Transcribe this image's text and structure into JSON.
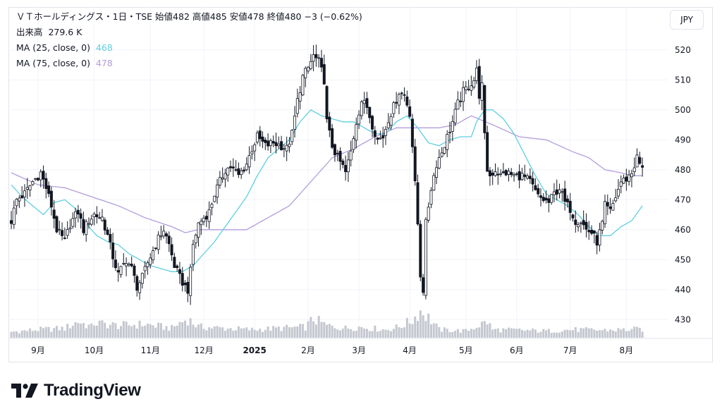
{
  "header": {
    "title": "ＶＴホールディングス・1日・TSE",
    "open_label": "始値",
    "open": "482",
    "high_label": "高値",
    "high": "485",
    "low_label": "安値",
    "low": "478",
    "close_label": "終値",
    "close": "480",
    "change": "−3 (−0.62%)",
    "volume_label": "出来高",
    "volume": "279.6 K",
    "ma25_label": "MA (25, close, 0)",
    "ma25_value": "468",
    "ma75_label": "MA (75, close, 0)",
    "ma75_value": "478",
    "currency": "JPY"
  },
  "brand": {
    "name": "TradingView"
  },
  "colors": {
    "up": "#131722",
    "down": "#131722",
    "ma25": "#5fcee0",
    "ma75": "#b39ddb",
    "grid": "#f0f3fa"
  },
  "chart_data": {
    "type": "candlestick",
    "y_ticks": [
      "520",
      "510",
      "500",
      "490",
      "480",
      "470",
      "460",
      "450",
      "440",
      "430"
    ],
    "ylim": [
      427,
      523
    ],
    "x_ticks": [
      {
        "label": "9月",
        "index": 10
      },
      {
        "label": "10月",
        "index": 31
      },
      {
        "label": "11月",
        "index": 52
      },
      {
        "label": "12月",
        "index": 72
      },
      {
        "label": "2025",
        "index": 91
      },
      {
        "label": "2月",
        "index": 111
      },
      {
        "label": "3月",
        "index": 130
      },
      {
        "label": "4月",
        "index": 149
      },
      {
        "label": "5月",
        "index": 170
      },
      {
        "label": "6月",
        "index": 189
      },
      {
        "label": "7月",
        "index": 209
      },
      {
        "label": "8月",
        "index": 230
      }
    ],
    "close_anchors": [
      [
        0,
        463
      ],
      [
        2,
        470
      ],
      [
        5,
        472
      ],
      [
        8,
        476
      ],
      [
        11,
        479
      ],
      [
        13,
        474
      ],
      [
        15,
        468
      ],
      [
        17,
        460
      ],
      [
        20,
        456
      ],
      [
        22,
        462
      ],
      [
        25,
        466
      ],
      [
        27,
        460
      ],
      [
        29,
        463
      ],
      [
        31,
        465
      ],
      [
        34,
        464
      ],
      [
        36,
        458
      ],
      [
        38,
        451
      ],
      [
        40,
        445
      ],
      [
        43,
        450
      ],
      [
        45,
        447
      ],
      [
        47,
        441
      ],
      [
        49,
        444
      ],
      [
        51,
        449
      ],
      [
        53,
        453
      ],
      [
        55,
        457
      ],
      [
        57,
        460
      ],
      [
        59,
        455
      ],
      [
        61,
        448
      ],
      [
        63,
        444
      ],
      [
        65,
        441
      ],
      [
        66,
        440
      ],
      [
        67,
        446
      ],
      [
        68,
        455
      ],
      [
        70,
        462
      ],
      [
        72,
        464
      ],
      [
        74,
        466
      ],
      [
        76,
        472
      ],
      [
        78,
        476
      ],
      [
        80,
        480
      ],
      [
        82,
        481
      ],
      [
        85,
        478
      ],
      [
        88,
        482
      ],
      [
        90,
        487
      ],
      [
        92,
        491
      ],
      [
        95,
        488
      ],
      [
        98,
        489
      ],
      [
        101,
        488
      ],
      [
        103,
        487
      ],
      [
        105,
        492
      ],
      [
        107,
        503
      ],
      [
        109,
        511
      ],
      [
        111,
        514
      ],
      [
        113,
        518
      ],
      [
        115,
        516
      ],
      [
        117,
        510
      ],
      [
        118,
        496
      ],
      [
        120,
        488
      ],
      [
        122,
        484
      ],
      [
        124,
        481
      ],
      [
        125,
        479
      ],
      [
        127,
        486
      ],
      [
        129,
        496
      ],
      [
        131,
        503
      ],
      [
        133,
        501
      ],
      [
        135,
        495
      ],
      [
        137,
        490
      ],
      [
        139,
        491
      ],
      [
        141,
        497
      ],
      [
        143,
        501
      ],
      [
        145,
        506
      ],
      [
        147,
        505
      ],
      [
        149,
        499
      ],
      [
        150,
        488
      ],
      [
        151,
        475
      ],
      [
        152,
        462
      ],
      [
        153,
        445
      ],
      [
        154,
        440
      ],
      [
        155,
        462
      ],
      [
        157,
        474
      ],
      [
        159,
        482
      ],
      [
        161,
        486
      ],
      [
        163,
        491
      ],
      [
        165,
        496
      ],
      [
        167,
        502
      ],
      [
        169,
        506
      ],
      [
        171,
        508
      ],
      [
        173,
        510
      ],
      [
        174,
        513
      ],
      [
        175,
        505
      ],
      [
        176,
        508
      ],
      [
        177,
        491
      ],
      [
        178,
        480
      ],
      [
        179,
        478
      ],
      [
        181,
        480
      ],
      [
        183,
        478
      ],
      [
        185,
        479
      ],
      [
        188,
        478
      ],
      [
        191,
        478
      ],
      [
        194,
        476
      ],
      [
        197,
        471
      ],
      [
        199,
        470
      ],
      [
        201,
        469
      ],
      [
        203,
        472
      ],
      [
        205,
        474
      ],
      [
        207,
        469
      ],
      [
        209,
        467
      ],
      [
        211,
        463
      ],
      [
        213,
        463
      ],
      [
        215,
        460
      ],
      [
        217,
        459
      ],
      [
        219,
        456
      ],
      [
        221,
        462
      ],
      [
        222,
        468
      ],
      [
        224,
        466
      ],
      [
        226,
        471
      ],
      [
        228,
        476
      ],
      [
        230,
        477
      ],
      [
        232,
        479
      ],
      [
        234,
        484
      ],
      [
        235,
        482
      ],
      [
        236,
        480
      ]
    ],
    "volume_range": [
      0,
      100
    ],
    "volume_anchors": [
      [
        0,
        22
      ],
      [
        10,
        30
      ],
      [
        20,
        35
      ],
      [
        25,
        60
      ],
      [
        30,
        40
      ],
      [
        31,
        55
      ],
      [
        40,
        45
      ],
      [
        50,
        50
      ],
      [
        60,
        35
      ],
      [
        63,
        55
      ],
      [
        66,
        70
      ],
      [
        70,
        40
      ],
      [
        80,
        35
      ],
      [
        90,
        30
      ],
      [
        100,
        35
      ],
      [
        110,
        40
      ],
      [
        113,
        70
      ],
      [
        118,
        45
      ],
      [
        125,
        35
      ],
      [
        130,
        40
      ],
      [
        140,
        30
      ],
      [
        145,
        40
      ],
      [
        150,
        65
      ],
      [
        152,
        90
      ],
      [
        153,
        100
      ],
      [
        156,
        75
      ],
      [
        160,
        30
      ],
      [
        170,
        25
      ],
      [
        178,
        60
      ],
      [
        180,
        30
      ],
      [
        190,
        28
      ],
      [
        200,
        25
      ],
      [
        210,
        30
      ],
      [
        220,
        28
      ],
      [
        230,
        30
      ],
      [
        236,
        32
      ]
    ],
    "ma25_anchors": [
      [
        0,
        475
      ],
      [
        4,
        471
      ],
      [
        8,
        468
      ],
      [
        12,
        465
      ],
      [
        16,
        469
      ],
      [
        20,
        470
      ],
      [
        24,
        467
      ],
      [
        28,
        462
      ],
      [
        32,
        458
      ],
      [
        36,
        456
      ],
      [
        40,
        455
      ],
      [
        44,
        452
      ],
      [
        48,
        450
      ],
      [
        52,
        448
      ],
      [
        56,
        447
      ],
      [
        60,
        446
      ],
      [
        64,
        446
      ],
      [
        68,
        448
      ],
      [
        72,
        452
      ],
      [
        76,
        456
      ],
      [
        80,
        461
      ],
      [
        84,
        466
      ],
      [
        88,
        471
      ],
      [
        92,
        478
      ],
      [
        96,
        484
      ],
      [
        100,
        487
      ],
      [
        104,
        490
      ],
      [
        108,
        496
      ],
      [
        112,
        500
      ],
      [
        116,
        498
      ],
      [
        120,
        497
      ],
      [
        124,
        496
      ],
      [
        128,
        496
      ],
      [
        132,
        494
      ],
      [
        136,
        492
      ],
      [
        140,
        492
      ],
      [
        144,
        496
      ],
      [
        148,
        498
      ],
      [
        152,
        494
      ],
      [
        156,
        489
      ],
      [
        160,
        488
      ],
      [
        164,
        490
      ],
      [
        168,
        491
      ],
      [
        172,
        491
      ],
      [
        174,
        496
      ],
      [
        177,
        500
      ],
      [
        180,
        500
      ],
      [
        184,
        497
      ],
      [
        188,
        492
      ],
      [
        192,
        485
      ],
      [
        196,
        478
      ],
      [
        200,
        472
      ],
      [
        204,
        470
      ],
      [
        208,
        468
      ],
      [
        212,
        465
      ],
      [
        216,
        461
      ],
      [
        220,
        458
      ],
      [
        224,
        458
      ],
      [
        228,
        461
      ],
      [
        232,
        463
      ],
      [
        236,
        468
      ]
    ],
    "ma75_anchors": [
      [
        0,
        479
      ],
      [
        10,
        475
      ],
      [
        20,
        474
      ],
      [
        30,
        471
      ],
      [
        40,
        468
      ],
      [
        50,
        464
      ],
      [
        60,
        461
      ],
      [
        65,
        459
      ],
      [
        70,
        460
      ],
      [
        80,
        460
      ],
      [
        88,
        460
      ],
      [
        96,
        464
      ],
      [
        104,
        468
      ],
      [
        112,
        476
      ],
      [
        120,
        484
      ],
      [
        128,
        487
      ],
      [
        136,
        491
      ],
      [
        144,
        494
      ],
      [
        152,
        494
      ],
      [
        160,
        494
      ],
      [
        166,
        495
      ],
      [
        172,
        498
      ],
      [
        180,
        495
      ],
      [
        190,
        491
      ],
      [
        200,
        490
      ],
      [
        210,
        486
      ],
      [
        216,
        484
      ],
      [
        222,
        480
      ],
      [
        228,
        479
      ],
      [
        232,
        478
      ],
      [
        236,
        478
      ]
    ]
  }
}
